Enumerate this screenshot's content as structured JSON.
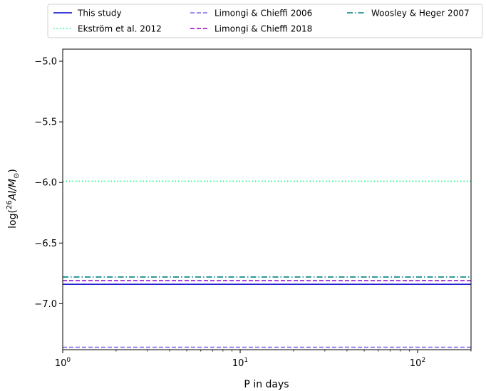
{
  "chart_data": {
    "type": "line",
    "title": "",
    "xlabel": "P in days",
    "ylabel_parts": {
      "pre": "log(",
      "sup": "26",
      "mid": "Al/M",
      "sub": "⊙",
      "post": ")"
    },
    "x_scale": "log",
    "xlim": [
      1,
      200
    ],
    "ylim": [
      -7.38,
      -4.9
    ],
    "x_ticks": [
      {
        "value": 1,
        "base": "10",
        "exp": "0"
      },
      {
        "value": 10,
        "base": "10",
        "exp": "1"
      },
      {
        "value": 100,
        "base": "10",
        "exp": "2"
      }
    ],
    "y_ticks": [
      {
        "value": -5.0,
        "label": "−5.0"
      },
      {
        "value": -5.5,
        "label": "−5.5"
      },
      {
        "value": -6.0,
        "label": "−6.0"
      },
      {
        "value": -6.5,
        "label": "−6.5"
      },
      {
        "value": -7.0,
        "label": "−7.0"
      }
    ],
    "grid": false,
    "legend_placement": "top",
    "series": [
      {
        "name": "This study",
        "color": "#0000cd",
        "dash": "solid",
        "x": [
          1,
          200
        ],
        "y": [
          -6.84,
          -6.84
        ]
      },
      {
        "name": "Ekström et al. 2012",
        "color": "#00ff7f",
        "dash": "dotted",
        "x": [
          1,
          200
        ],
        "y": [
          -5.99,
          -5.99
        ]
      },
      {
        "name": "Limongi & Chieffi 2006",
        "color": "#7b68ee",
        "dash": "dashed",
        "x": [
          1,
          200
        ],
        "y": [
          -7.36,
          -7.36
        ]
      },
      {
        "name": "Limongi & Chieffi 2018",
        "color": "#9400d3",
        "dash": "dashed",
        "x": [
          1,
          200
        ],
        "y": [
          -6.81,
          -6.81
        ]
      },
      {
        "name": "Woosley & Heger 2007",
        "color": "#008080",
        "dash": "dashdot",
        "x": [
          1,
          200
        ],
        "y": [
          -6.78,
          -6.78
        ]
      }
    ]
  }
}
